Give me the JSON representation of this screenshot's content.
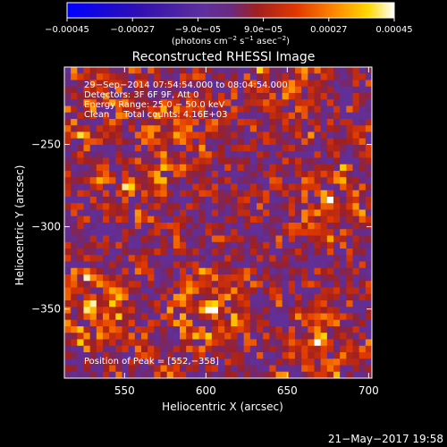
{
  "chart_data": {
    "type": "heatmap",
    "title": "Reconstructed RHESSI Image",
    "xlabel": "Heliocentric X (arcsec)",
    "ylabel": "Heliocentric Y (arcsec)",
    "xlim": [
      513,
      702
    ],
    "ylim": [
      -392,
      -203
    ],
    "x_ticks": [
      550,
      600,
      650,
      700
    ],
    "y_ticks": [
      -250,
      -300,
      -350
    ],
    "x_tick_labels": [
      "550",
      "600",
      "650",
      "700"
    ],
    "y_tick_labels": [
      "−250",
      "−300",
      "−350"
    ],
    "grid": false,
    "colorbar": {
      "range": [
        -0.00045,
        0.00045
      ],
      "ticks": [
        -0.00045,
        -0.00027,
        -9e-05,
        9e-05,
        0.00027,
        0.00045
      ],
      "tick_labels": [
        "−0.00045",
        "−0.00027",
        "−9.0e−05",
        "9.0e−05",
        "0.00027",
        "0.00045"
      ],
      "units_text": "(photons cm",
      "units_exp1": "−2",
      "units_mid": " s",
      "units_exp2": "−1",
      "units_mid2": " asec",
      "units_exp3": "−2",
      "units_end": ")",
      "colormap": [
        "#0000ff",
        "#2a0a9a",
        "#5a2a9a",
        "#9a2020",
        "#d83000",
        "#ff8000",
        "#ffd000",
        "#ffffff"
      ]
    },
    "annotations": [
      "29−Sep−2014 07:54:54.000 to 08:04:54.000",
      "Detectors: 3F 6F 9F, Att 0",
      "Energy Range: 25.0 − 50.0 keV",
      "Clean     Total counts: 4.16E+03"
    ],
    "peak_label": "Position of Peak = [552,−358]",
    "peak": [
      552,
      -358
    ],
    "bright_sources": [
      {
        "x": 602,
        "y": -350,
        "peak": 0.00045
      },
      {
        "x": 585,
        "y": -243,
        "peak": 0.00035
      },
      {
        "x": 675,
        "y": -285,
        "peak": 0.00038
      },
      {
        "x": 670,
        "y": -370,
        "peak": 0.00036
      },
      {
        "x": 530,
        "y": -350,
        "peak": 0.00045
      },
      {
        "x": 553,
        "y": -277,
        "peak": 0.00032
      },
      {
        "x": 530,
        "y": -225,
        "peak": 0.0003
      },
      {
        "x": 650,
        "y": -215,
        "peak": 0.00028
      }
    ],
    "grid_resolution": 48
  },
  "timestamp": "21−May−2017 19:58"
}
